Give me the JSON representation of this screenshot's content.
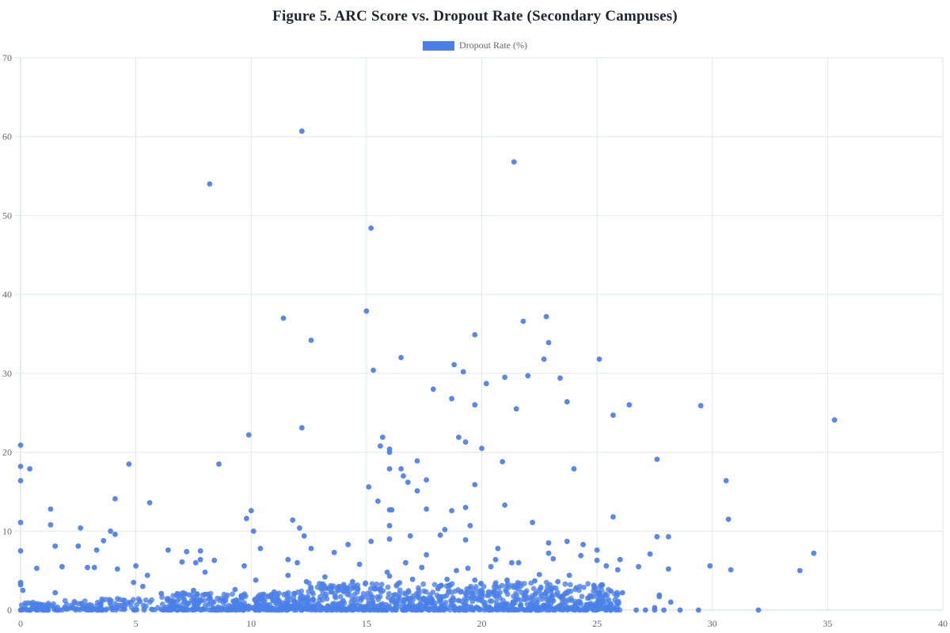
{
  "title": "Figure 5. ARC Score vs. Dropout Rate (Secondary Campuses)",
  "legend": {
    "label": "Dropout Rate (%)",
    "color": "#4a7fe8"
  },
  "chart_data": {
    "type": "scatter",
    "title": "Figure 5. ARC Score vs. Dropout Rate (Secondary Campuses)",
    "xlabel": "",
    "ylabel": "",
    "legend": [
      "Dropout Rate (%)"
    ],
    "legend_position": "top",
    "grid": true,
    "xlim": [
      0,
      40
    ],
    "ylim": [
      0,
      70
    ],
    "xticks": [
      0,
      5,
      10,
      15,
      20,
      25,
      30,
      35,
      40
    ],
    "yticks": [
      0,
      10,
      20,
      30,
      40,
      50,
      60,
      70
    ],
    "point_color": "#4a7fe8",
    "series": [
      {
        "name": "Dropout Rate (%)",
        "points": [
          [
            12.2,
            60.7
          ],
          [
            21.4,
            56.8
          ],
          [
            8.2,
            54.0
          ],
          [
            15.2,
            48.4
          ],
          [
            15.0,
            37.9
          ],
          [
            11.4,
            37.0
          ],
          [
            22.8,
            37.2
          ],
          [
            21.8,
            36.6
          ],
          [
            19.7,
            34.9
          ],
          [
            12.6,
            34.2
          ],
          [
            22.9,
            33.9
          ],
          [
            16.5,
            32.0
          ],
          [
            22.7,
            31.8
          ],
          [
            25.1,
            31.8
          ],
          [
            18.8,
            31.1
          ],
          [
            15.3,
            30.4
          ],
          [
            19.2,
            30.2
          ],
          [
            22.0,
            29.7
          ],
          [
            21.0,
            29.5
          ],
          [
            23.4,
            29.4
          ],
          [
            20.2,
            28.7
          ],
          [
            17.9,
            28.0
          ],
          [
            18.7,
            26.8
          ],
          [
            23.7,
            26.4
          ],
          [
            19.7,
            26.0
          ],
          [
            26.4,
            26.0
          ],
          [
            29.5,
            25.9
          ],
          [
            21.5,
            25.5
          ],
          [
            25.7,
            24.7
          ],
          [
            35.3,
            24.1
          ],
          [
            12.2,
            23.1
          ],
          [
            9.9,
            22.2
          ],
          [
            15.7,
            21.9
          ],
          [
            19.0,
            21.9
          ],
          [
            19.3,
            21.3
          ],
          [
            15.6,
            20.8
          ],
          [
            0.0,
            20.9
          ],
          [
            16.0,
            20.4
          ],
          [
            16.0,
            20.0
          ],
          [
            20.0,
            20.5
          ],
          [
            27.6,
            19.1
          ],
          [
            17.2,
            18.9
          ],
          [
            20.9,
            18.8
          ],
          [
            4.7,
            18.5
          ],
          [
            8.6,
            18.5
          ],
          [
            0.0,
            18.2
          ],
          [
            0.4,
            17.9
          ],
          [
            16.0,
            17.9
          ],
          [
            16.5,
            17.9
          ],
          [
            24.0,
            17.9
          ],
          [
            16.6,
            17.0
          ],
          [
            17.6,
            16.5
          ],
          [
            0.0,
            16.4
          ],
          [
            30.6,
            16.4
          ],
          [
            16.8,
            16.2
          ],
          [
            19.7,
            15.9
          ],
          [
            15.1,
            15.6
          ],
          [
            17.2,
            15.1
          ],
          [
            4.1,
            14.1
          ],
          [
            15.5,
            13.8
          ],
          [
            5.6,
            13.6
          ],
          [
            21.0,
            13.3
          ],
          [
            19.3,
            13.0
          ],
          [
            1.3,
            12.8
          ],
          [
            10.0,
            12.6
          ],
          [
            16.0,
            12.7
          ],
          [
            16.1,
            12.7
          ],
          [
            17.6,
            12.8
          ],
          [
            18.7,
            12.6
          ],
          [
            9.8,
            11.6
          ],
          [
            25.7,
            11.8
          ],
          [
            30.7,
            11.5
          ],
          [
            0.0,
            11.1
          ],
          [
            22.2,
            11.1
          ],
          [
            11.8,
            11.4
          ],
          [
            1.3,
            10.8
          ],
          [
            19.5,
            10.7
          ],
          [
            2.6,
            10.4
          ],
          [
            12.1,
            10.4
          ],
          [
            16.0,
            10.7
          ],
          [
            18.4,
            10.2
          ],
          [
            3.9,
            10.0
          ],
          [
            10.1,
            10.0
          ],
          [
            4.1,
            9.6
          ],
          [
            12.3,
            9.4
          ],
          [
            27.6,
            9.3
          ],
          [
            28.1,
            9.3
          ],
          [
            16.0,
            9.0
          ],
          [
            16.9,
            9.4
          ],
          [
            18.2,
            9.5
          ],
          [
            3.6,
            8.8
          ],
          [
            19.3,
            8.9
          ],
          [
            22.9,
            8.5
          ],
          [
            23.7,
            8.7
          ],
          [
            1.5,
            8.1
          ],
          [
            2.5,
            8.1
          ],
          [
            14.2,
            8.3
          ],
          [
            15.2,
            8.7
          ],
          [
            24.4,
            8.3
          ],
          [
            12.6,
            7.8
          ],
          [
            20.7,
            7.8
          ],
          [
            6.4,
            7.6
          ],
          [
            7.8,
            7.5
          ],
          [
            10.4,
            7.8
          ],
          [
            25.0,
            7.6
          ],
          [
            3.3,
            7.6
          ],
          [
            0.0,
            7.5
          ],
          [
            13.6,
            7.3
          ],
          [
            22.9,
            7.2
          ],
          [
            7.2,
            7.4
          ],
          [
            27.3,
            7.1
          ],
          [
            34.4,
            7.2
          ],
          [
            17.6,
            7.0
          ],
          [
            24.3,
            6.9
          ],
          [
            7.8,
            6.4
          ],
          [
            8.4,
            6.3
          ],
          [
            11.6,
            6.4
          ],
          [
            20.6,
            6.4
          ],
          [
            25.0,
            6.3
          ],
          [
            26.0,
            6.4
          ],
          [
            23.1,
            6.5
          ],
          [
            7.0,
            6.1
          ],
          [
            7.6,
            6.0
          ],
          [
            12.0,
            6.0
          ],
          [
            16.7,
            6.0
          ],
          [
            21.3,
            6.0
          ],
          [
            21.6,
            6.0
          ],
          [
            25.4,
            5.6
          ],
          [
            29.9,
            5.6
          ],
          [
            4.2,
            5.2
          ],
          [
            5.0,
            5.6
          ],
          [
            0.7,
            5.3
          ],
          [
            1.8,
            5.5
          ],
          [
            2.9,
            5.4
          ],
          [
            3.2,
            5.4
          ],
          [
            9.7,
            5.6
          ],
          [
            14.7,
            5.8
          ],
          [
            17.4,
            5.4
          ],
          [
            19.4,
            5.3
          ],
          [
            20.4,
            5.5
          ],
          [
            26.8,
            5.5
          ],
          [
            28.1,
            5.2
          ],
          [
            30.8,
            5.1
          ],
          [
            33.8,
            5.0
          ],
          [
            25.9,
            5.1
          ],
          [
            18.9,
            5.0
          ],
          [
            15.9,
            4.8
          ],
          [
            5.5,
            4.4
          ],
          [
            8.0,
            4.8
          ],
          [
            13.2,
            4.2
          ],
          [
            16.0,
            4.3
          ],
          [
            22.5,
            4.5
          ],
          [
            23.8,
            4.4
          ],
          [
            11.6,
            4.4
          ],
          [
            0.0,
            3.5
          ],
          [
            0.0,
            3.2
          ],
          [
            4.9,
            3.5
          ],
          [
            5.3,
            3.0
          ],
          [
            10.2,
            3.8
          ],
          [
            12.4,
            3.6
          ],
          [
            14.4,
            3.6
          ],
          [
            17.0,
            3.9
          ],
          [
            18.5,
            3.9
          ],
          [
            19.7,
            3.8
          ],
          [
            21.1,
            3.8
          ],
          [
            22.3,
            3.7
          ],
          [
            23.3,
            3.6
          ],
          [
            0.1,
            2.5
          ],
          [
            1.5,
            2.2
          ],
          [
            6.1,
            2.1
          ],
          [
            6.8,
            2.1
          ],
          [
            7.5,
            2.5
          ],
          [
            9.3,
            2.6
          ],
          [
            11.0,
            2.3
          ],
          [
            13.8,
            2.5
          ],
          [
            15.6,
            2.7
          ],
          [
            18.1,
            2.7
          ],
          [
            20.3,
            2.3
          ],
          [
            21.9,
            2.2
          ],
          [
            25.1,
            2.2
          ],
          [
            25.6,
            2.4
          ],
          [
            26.1,
            2.2
          ],
          [
            27.7,
            1.9
          ],
          [
            27.7,
            1.7
          ],
          [
            24.6,
            1.5
          ],
          [
            28.2,
            1.0
          ],
          [
            8.2,
            1.6
          ],
          [
            16.8,
            1.4
          ],
          [
            19.0,
            1.2
          ],
          [
            22.7,
            0.6
          ],
          [
            24.9,
            0.5
          ],
          [
            27.5,
            0.3
          ],
          [
            0.0,
            0.0
          ],
          [
            0.4,
            0.0
          ],
          [
            0.7,
            0.0
          ],
          [
            1.0,
            0.0
          ],
          [
            1.2,
            0.0
          ],
          [
            1.6,
            0.0
          ],
          [
            25.6,
            0.0
          ],
          [
            26.7,
            0.0
          ],
          [
            27.1,
            0.0
          ],
          [
            27.5,
            0.0
          ],
          [
            27.9,
            0.0
          ],
          [
            28.6,
            0.0
          ],
          [
            29.4,
            0.0
          ],
          [
            32.0,
            0.0
          ]
        ],
        "dense_cluster": {
          "description": "Dense band of many overlapping points along the x-axis",
          "x_range": [
            0,
            26
          ],
          "y_range": [
            0,
            3.5
          ],
          "approx_count": 1400
        }
      }
    ]
  }
}
